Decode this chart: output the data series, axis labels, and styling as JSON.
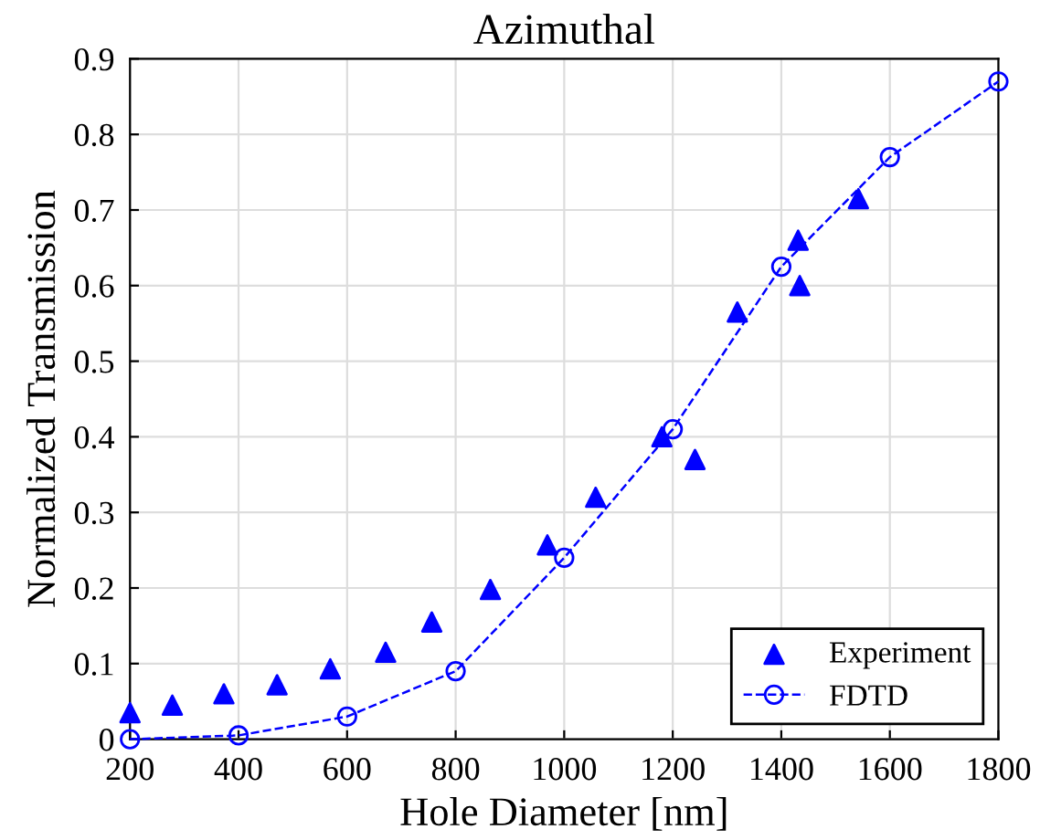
{
  "chart_data": {
    "type": "scatter",
    "title": "Azimuthal",
    "xlabel": "Hole Diameter [nm]",
    "ylabel": "Normalized Transmission",
    "xlim": [
      200,
      1800
    ],
    "xticks": [
      200,
      400,
      600,
      800,
      1000,
      1200,
      1400,
      1600,
      1800
    ],
    "ylim": [
      0,
      0.9
    ],
    "yticks": [
      0,
      0.1,
      0.2,
      0.3,
      0.4,
      0.5,
      0.6,
      0.7,
      0.8,
      0.9
    ],
    "grid": true,
    "legend": "bottom right",
    "series": [
      {
        "name": "Experiment",
        "color": "#0000ff",
        "marker": "triangle",
        "x": [
          200,
          278,
          373,
          471,
          569,
          671,
          756,
          864,
          969,
          1058,
          1180,
          1241,
          1319,
          1431,
          1434,
          1542
        ],
        "values": [
          0.035,
          0.045,
          0.06,
          0.072,
          0.093,
          0.115,
          0.155,
          0.198,
          0.257,
          0.32,
          0.4,
          0.37,
          0.565,
          0.66,
          0.6,
          0.715
        ]
      },
      {
        "name": "FDTD",
        "type": "line",
        "color": "#0000ff",
        "marker": "circle",
        "line_style": "dashed",
        "x": [
          200,
          400,
          600,
          800,
          1000,
          1200,
          1400,
          1600,
          1800
        ],
        "values": [
          0.0,
          0.005,
          0.03,
          0.09,
          0.24,
          0.41,
          0.625,
          0.77,
          0.87
        ]
      }
    ]
  }
}
